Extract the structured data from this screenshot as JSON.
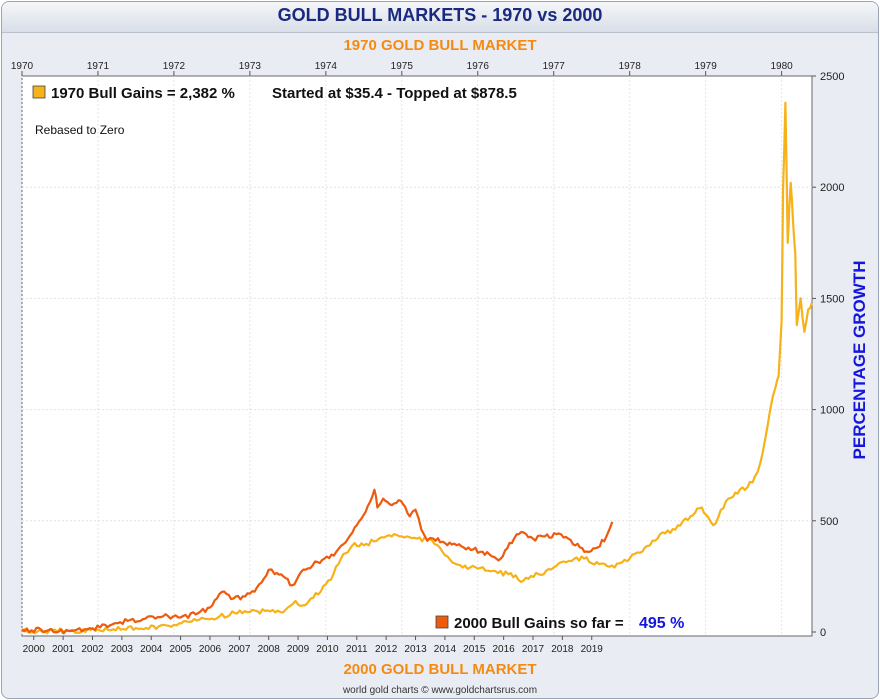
{
  "title": "GOLD BULL MARKETS - 1970 vs 2000",
  "top_axis_title": "1970 GOLD BULL MARKET",
  "bottom_axis_title": "2000 GOLD BULL MARKET",
  "credit": "world gold charts © www.goldchartsrus.com",
  "legend": {
    "series_1970": "1970 Bull Gains = 2,382 %",
    "series_1970_note": "Started at $35.4 - Topped at $878.5",
    "rebased_note": "Rebased to Zero",
    "series_2000": "2000 Bull Gains so far =",
    "series_2000_value": "495 %"
  },
  "colors": {
    "series_1970": "#f6b21a",
    "series_2000": "#ee5a0e",
    "ylabel": "#1515e0"
  },
  "chart_data": {
    "type": "line",
    "ylabel": "PERCENTAGE GROWTH",
    "ylim": [
      0,
      2500
    ],
    "yticks": [
      0,
      500,
      1000,
      1500,
      2000,
      2500
    ],
    "grid": true,
    "top_x_axis": {
      "ticks": [
        "1970",
        "1971",
        "1972",
        "1973",
        "1974",
        "1975",
        "1976",
        "1977",
        "1978",
        "1979",
        "1980"
      ],
      "range": [
        1970.0,
        1980.4
      ]
    },
    "bottom_x_axis": {
      "ticks": [
        "2000",
        "2001",
        "2002",
        "2003",
        "2004",
        "2005",
        "2006",
        "2007",
        "2008",
        "2009",
        "2010",
        "2011",
        "2012",
        "2013",
        "2014",
        "2015",
        "2016",
        "2017",
        "2018",
        "2019"
      ],
      "range": [
        1999.6,
        2026.5
      ]
    },
    "series": [
      {
        "name": "1970 Bull Gains",
        "axis": "top",
        "x": [
          1970.0,
          1970.3,
          1970.6,
          1970.9,
          1971.2,
          1971.5,
          1971.8,
          1972.0,
          1972.2,
          1972.4,
          1972.6,
          1972.8,
          1973.0,
          1973.2,
          1973.4,
          1973.5,
          1973.6,
          1973.7,
          1973.8,
          1973.9,
          1974.0,
          1974.1,
          1974.2,
          1974.35,
          1974.5,
          1974.7,
          1974.9,
          1975.0,
          1975.2,
          1975.4,
          1975.5,
          1975.6,
          1975.8,
          1976.0,
          1976.2,
          1976.4,
          1976.6,
          1976.8,
          1977.0,
          1977.2,
          1977.4,
          1977.6,
          1977.8,
          1978.0,
          1978.2,
          1978.4,
          1978.6,
          1978.8,
          1978.95,
          1979.1,
          1979.3,
          1979.45,
          1979.55,
          1979.65,
          1979.72,
          1979.78,
          1979.85,
          1979.92,
          1979.96,
          1980.0,
          1980.02,
          1980.05,
          1980.08,
          1980.1,
          1980.12,
          1980.15,
          1980.18,
          1980.2,
          1980.25,
          1980.3,
          1980.35,
          1980.4
        ],
        "values": [
          2,
          4,
          5,
          8,
          12,
          18,
          25,
          32,
          45,
          60,
          70,
          85,
          90,
          95,
          90,
          110,
          140,
          120,
          150,
          170,
          215,
          260,
          330,
          390,
          390,
          420,
          440,
          430,
          420,
          410,
          380,
          340,
          290,
          285,
          275,
          260,
          230,
          260,
          290,
          320,
          330,
          305,
          290,
          330,
          380,
          440,
          460,
          520,
          560,
          480,
          600,
          640,
          650,
          700,
          760,
          860,
          1000,
          1100,
          1150,
          1400,
          2000,
          2380,
          1750,
          1900,
          2020,
          1850,
          1700,
          1380,
          1500,
          1350,
          1450,
          1480
        ]
      },
      {
        "name": "2000 Bull Gains so far",
        "axis": "bottom",
        "x": [
          1999.6,
          2000.5,
          2001.2,
          2002.0,
          2002.6,
          2003.2,
          2003.8,
          2004.4,
          2005.0,
          2005.6,
          2006.0,
          2006.4,
          2006.8,
          2007.2,
          2007.6,
          2008.0,
          2008.2,
          2008.5,
          2008.8,
          2009.1,
          2009.5,
          2009.9,
          2010.3,
          2010.7,
          2011.0,
          2011.3,
          2011.6,
          2011.7,
          2011.9,
          2012.2,
          2012.5,
          2012.8,
          2013.0,
          2013.2,
          2013.4,
          2013.6,
          2014.0,
          2014.4,
          2014.8,
          2015.2,
          2015.6,
          2015.9,
          2016.2,
          2016.6,
          2017.0,
          2017.4,
          2017.8,
          2018.2,
          2018.6,
          2018.9,
          2019.2,
          2019.5,
          2019.7
        ],
        "values": [
          12,
          8,
          4,
          15,
          30,
          50,
          60,
          70,
          65,
          85,
          110,
          180,
          150,
          160,
          200,
          280,
          260,
          250,
          210,
          270,
          300,
          330,
          360,
          420,
          480,
          540,
          640,
          560,
          600,
          570,
          590,
          520,
          550,
          460,
          410,
          420,
          400,
          390,
          380,
          360,
          340,
          330,
          400,
          450,
          420,
          430,
          440,
          420,
          380,
          360,
          380,
          430,
          495
        ]
      }
    ]
  }
}
